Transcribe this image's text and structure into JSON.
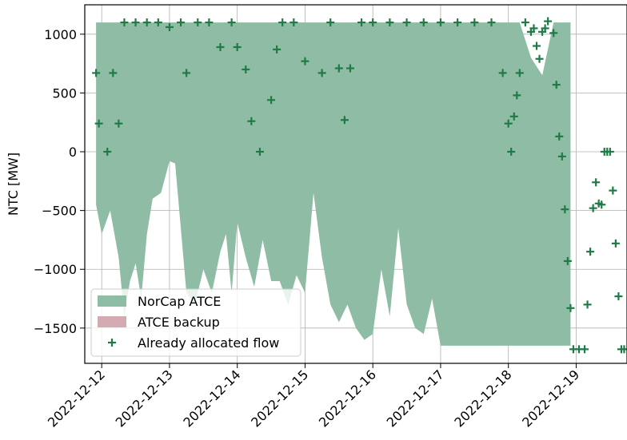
{
  "chart_data": {
    "type": "area",
    "ylabel": "NTC [MW]",
    "xlabel": "",
    "xlim": [
      "2022-12-11T18:00",
      "2022-12-19T18:00"
    ],
    "ylim": [
      -1800,
      1250
    ],
    "grid": true,
    "legend_position": "lower-left",
    "x_ticks": [
      "2022-12-12",
      "2022-12-13",
      "2022-12-14",
      "2022-12-15",
      "2022-12-16",
      "2022-12-17",
      "2022-12-18",
      "2022-12-19"
    ],
    "y_ticks": [
      1000,
      500,
      0,
      -500,
      -1000,
      -1500
    ],
    "y_tick_labels": [
      "1000",
      "500",
      "0",
      "−500",
      "−1000",
      "−1500"
    ],
    "series": [
      {
        "name": "NorCap ATCE",
        "kind": "band",
        "color": "#8fbca4",
        "x": [
          "2022-12-11T22:00",
          "2022-12-12T00:00",
          "2022-12-12T03:00",
          "2022-12-12T06:00",
          "2022-12-12T08:00",
          "2022-12-12T10:00",
          "2022-12-12T12:00",
          "2022-12-12T14:00",
          "2022-12-12T16:00",
          "2022-12-12T18:00",
          "2022-12-12T21:00",
          "2022-12-13T00:00",
          "2022-12-13T02:00",
          "2022-12-13T04:00",
          "2022-12-13T06:00",
          "2022-12-13T09:00",
          "2022-12-13T12:00",
          "2022-12-13T15:00",
          "2022-12-13T18:00",
          "2022-12-13T20:00",
          "2022-12-13T22:00",
          "2022-12-14T00:00",
          "2022-12-14T03:00",
          "2022-12-14T06:00",
          "2022-12-14T09:00",
          "2022-12-14T12:00",
          "2022-12-14T15:00",
          "2022-12-14T18:00",
          "2022-12-14T21:00",
          "2022-12-15T00:00",
          "2022-12-15T03:00",
          "2022-12-15T06:00",
          "2022-12-15T09:00",
          "2022-12-15T12:00",
          "2022-12-15T15:00",
          "2022-12-15T18:00",
          "2022-12-15T21:00",
          "2022-12-16T00:00",
          "2022-12-16T03:00",
          "2022-12-16T06:00",
          "2022-12-16T09:00",
          "2022-12-16T12:00",
          "2022-12-16T15:00",
          "2022-12-16T18:00",
          "2022-12-16T21:00",
          "2022-12-17T00:00",
          "2022-12-17T04:00",
          "2022-12-17T08:00",
          "2022-12-17T12:00",
          "2022-12-17T16:00",
          "2022-12-17T20:00",
          "2022-12-18T00:00",
          "2022-12-18T04:00",
          "2022-12-18T08:00",
          "2022-12-18T12:00",
          "2022-12-18T16:00",
          "2022-12-18T20:00",
          "2022-12-18T22:00"
        ],
        "upper": [
          1100,
          1100,
          1100,
          1100,
          1100,
          1100,
          1100,
          1100,
          1100,
          1100,
          1100,
          1100,
          1100,
          1100,
          1100,
          1100,
          1100,
          1100,
          1100,
          1100,
          1100,
          1100,
          1100,
          1100,
          1100,
          1100,
          1100,
          1100,
          1100,
          1100,
          1100,
          1100,
          1100,
          1100,
          1100,
          1100,
          1100,
          1100,
          1100,
          1100,
          1100,
          1100,
          1100,
          1100,
          1100,
          1100,
          1100,
          1100,
          1100,
          1100,
          1100,
          1100,
          1100,
          800,
          650,
          1100,
          1100,
          1100
        ],
        "lower": [
          -450,
          -700,
          -500,
          -900,
          -1400,
          -1100,
          -950,
          -1250,
          -700,
          -400,
          -350,
          -80,
          -100,
          -650,
          -1200,
          -1300,
          -1000,
          -1200,
          -850,
          -700,
          -1200,
          -600,
          -900,
          -1150,
          -750,
          -1100,
          -1100,
          -1300,
          -1050,
          -1200,
          -350,
          -900,
          -1300,
          -1450,
          -1300,
          -1500,
          -1600,
          -1550,
          -1000,
          -1400,
          -650,
          -1300,
          -1500,
          -1550,
          -1250,
          -1650,
          -1650,
          -1650,
          -1650,
          -1650,
          -1650,
          -1650,
          -1650,
          -1650,
          -1650,
          -1650,
          -1650,
          -1650
        ]
      },
      {
        "name": "ATCE backup",
        "kind": "band",
        "color": "#d4aab3",
        "x": [],
        "upper": [],
        "lower": []
      },
      {
        "name": "Already allocated flow",
        "kind": "scatter",
        "marker": "+",
        "color": "#1f7a46",
        "points": [
          [
            "2022-12-11T22:00",
            670
          ],
          [
            "2022-12-11T23:00",
            240
          ],
          [
            "2022-12-12T02:00",
            0
          ],
          [
            "2022-12-12T04:00",
            670
          ],
          [
            "2022-12-12T06:00",
            240
          ],
          [
            "2022-12-12T08:00",
            1100
          ],
          [
            "2022-12-12T12:00",
            1100
          ],
          [
            "2022-12-12T16:00",
            1100
          ],
          [
            "2022-12-12T20:00",
            1100
          ],
          [
            "2022-12-13T00:00",
            1060
          ],
          [
            "2022-12-13T04:00",
            1100
          ],
          [
            "2022-12-13T06:00",
            670
          ],
          [
            "2022-12-13T10:00",
            1100
          ],
          [
            "2022-12-13T14:00",
            1100
          ],
          [
            "2022-12-13T18:00",
            890
          ],
          [
            "2022-12-13T22:00",
            1100
          ],
          [
            "2022-12-14T00:00",
            890
          ],
          [
            "2022-12-14T03:00",
            700
          ],
          [
            "2022-12-14T05:00",
            260
          ],
          [
            "2022-12-14T08:00",
            0
          ],
          [
            "2022-12-14T12:00",
            440
          ],
          [
            "2022-12-14T14:00",
            870
          ],
          [
            "2022-12-14T16:00",
            1100
          ],
          [
            "2022-12-14T20:00",
            1100
          ],
          [
            "2022-12-15T00:00",
            770
          ],
          [
            "2022-12-15T06:00",
            670
          ],
          [
            "2022-12-15T09:00",
            1100
          ],
          [
            "2022-12-15T12:00",
            710
          ],
          [
            "2022-12-15T14:00",
            270
          ],
          [
            "2022-12-15T16:00",
            710
          ],
          [
            "2022-12-15T20:00",
            1100
          ],
          [
            "2022-12-16T00:00",
            1100
          ],
          [
            "2022-12-16T06:00",
            1100
          ],
          [
            "2022-12-16T12:00",
            1100
          ],
          [
            "2022-12-16T18:00",
            1100
          ],
          [
            "2022-12-17T00:00",
            1100
          ],
          [
            "2022-12-17T06:00",
            1100
          ],
          [
            "2022-12-17T12:00",
            1100
          ],
          [
            "2022-12-17T18:00",
            1100
          ],
          [
            "2022-12-17T22:00",
            670
          ],
          [
            "2022-12-18T00:00",
            240
          ],
          [
            "2022-12-18T01:00",
            0
          ],
          [
            "2022-12-18T02:00",
            300
          ],
          [
            "2022-12-18T03:00",
            480
          ],
          [
            "2022-12-18T04:00",
            670
          ],
          [
            "2022-12-18T06:00",
            1100
          ],
          [
            "2022-12-18T08:00",
            1020
          ],
          [
            "2022-12-18T09:00",
            1050
          ],
          [
            "2022-12-18T10:00",
            900
          ],
          [
            "2022-12-18T11:00",
            790
          ],
          [
            "2022-12-18T12:00",
            1020
          ],
          [
            "2022-12-18T13:00",
            1050
          ],
          [
            "2022-12-18T14:00",
            1110
          ],
          [
            "2022-12-18T16:00",
            1010
          ],
          [
            "2022-12-18T17:00",
            570
          ],
          [
            "2022-12-18T18:00",
            130
          ],
          [
            "2022-12-18T19:00",
            -40
          ],
          [
            "2022-12-18T20:00",
            -490
          ],
          [
            "2022-12-18T21:00",
            -930
          ],
          [
            "2022-12-18T22:00",
            -1330
          ],
          [
            "2022-12-18T23:00",
            -1680
          ],
          [
            "2022-12-19T01:00",
            -1680
          ],
          [
            "2022-12-19T03:00",
            -1680
          ],
          [
            "2022-12-19T04:00",
            -1300
          ],
          [
            "2022-12-19T05:00",
            -850
          ],
          [
            "2022-12-19T06:00",
            -480
          ],
          [
            "2022-12-19T07:00",
            -260
          ],
          [
            "2022-12-19T08:00",
            -440
          ],
          [
            "2022-12-19T09:00",
            -450
          ],
          [
            "2022-12-19T10:00",
            0
          ],
          [
            "2022-12-19T11:00",
            0
          ],
          [
            "2022-12-19T12:00",
            0
          ],
          [
            "2022-12-19T13:00",
            -330
          ],
          [
            "2022-12-19T14:00",
            -780
          ],
          [
            "2022-12-19T15:00",
            -1230
          ],
          [
            "2022-12-19T16:00",
            -1680
          ],
          [
            "2022-12-19T17:00",
            -1680
          ]
        ]
      }
    ]
  }
}
